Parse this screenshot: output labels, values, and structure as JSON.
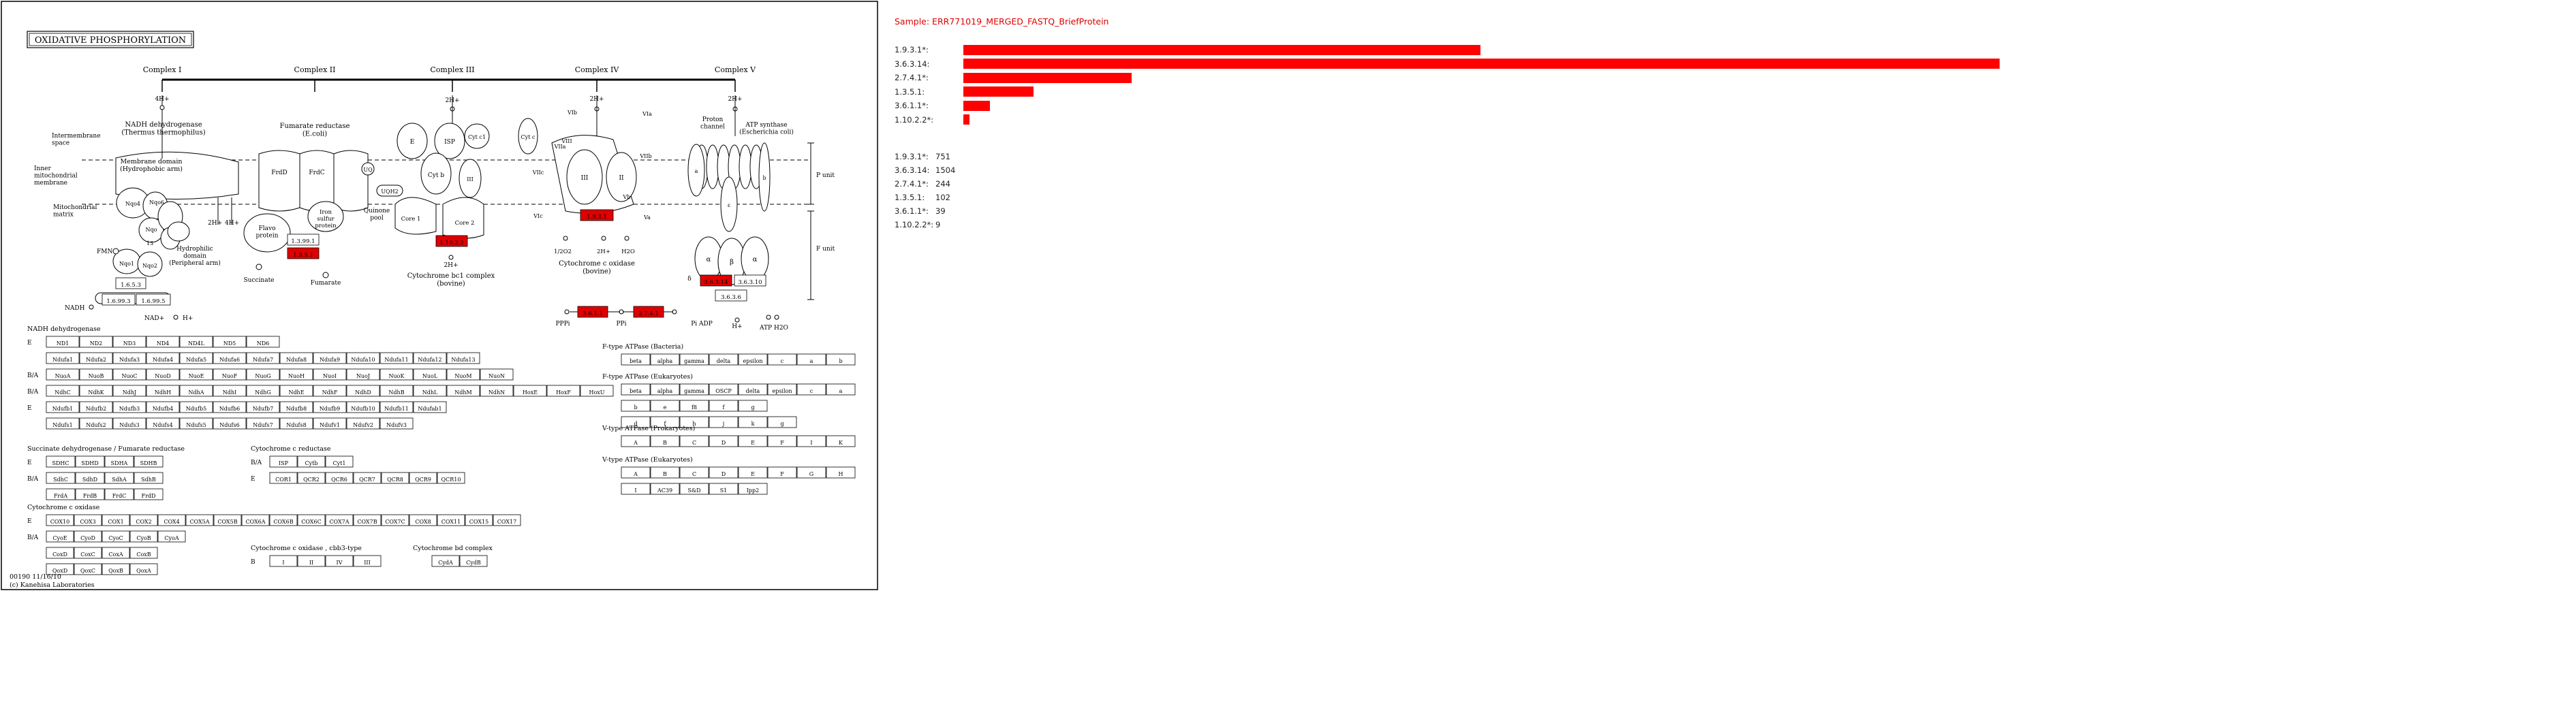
{
  "map": {
    "title": "OXIDATIVE PHOSPHORYLATION",
    "map_id": "00190 11/16/10",
    "copyright": "(c) Kanehisa Laboratories",
    "complex_labels": [
      "Complex I",
      "Complex II",
      "Complex III",
      "Complex IV",
      "Complex V"
    ],
    "side_labels": {
      "intermembrane": [
        "Intermembrane",
        "space"
      ],
      "inner": [
        "Inner",
        "mitochondrial",
        "membrane"
      ],
      "matrix": [
        "Mitochondrial",
        "matrix"
      ],
      "p_unit": "P unit",
      "f_unit": "F unit"
    },
    "diagram_text": {
      "nadh_dh": [
        "NADH dehydrogenase",
        "(Thermus thermophilus)"
      ],
      "membrane_domain": [
        "Membrane domain",
        "(Hydrophobic arm)"
      ],
      "hydrophilic": [
        "Hydrophilic",
        "domain",
        "(Peripheral arm)"
      ],
      "fumarate_reductase": [
        "Fumarate reductase",
        "(E.coli)"
      ],
      "flavo": [
        "Flavo",
        "protein"
      ],
      "iron": [
        "Iron",
        "sulfur",
        "protein"
      ],
      "quinone_pool": [
        "Quinone",
        "pool"
      ],
      "succinate": "Succinate",
      "fumarate": "Fumarate",
      "cytbc1": [
        "Cytochrome bc1 complex",
        "(bovine)"
      ],
      "cox": [
        "Cytochrome c oxidase",
        "(bovine)"
      ],
      "atp_synthase": [
        "ATP synthase",
        "(Escherichia coli)"
      ],
      "proton_channel": [
        "Proton",
        "channel"
      ],
      "fmn": "FMN",
      "nadh": "NADH",
      "nad_h": "NAD+",
      "h_plus": "H+",
      "four_h": "4H+",
      "two_h": "2H+",
      "uq": "UQ",
      "uqh2": "UQH2",
      "half_o2": "1/2O2",
      "h2o": "H2O",
      "ppi": "PPPi",
      "pi": "PPi",
      "pi_adp": "Pi ADP",
      "atp_h2o": "ATP H2O",
      "core1": "Core 1",
      "core2": "Core 2",
      "isp": "ISP",
      "cytc1": "Cyt c1",
      "cytb": "Cyt b",
      "cytc": "Cyt c",
      "sub_letters": [
        "E",
        "I",
        "II",
        "III",
        "IV",
        "Va",
        "Vb",
        "VIa",
        "VIb",
        "VIc",
        "VIIa",
        "VIIb",
        "VIIc",
        "VIII"
      ]
    },
    "ec_boxes": [
      {
        "id": "ec_1_6_5_3",
        "label": "1.6.5.3",
        "hit": false
      },
      {
        "id": "ec_1_6_99_3",
        "label": "1.6.99.3",
        "hit": false
      },
      {
        "id": "ec_1_6_99_5",
        "label": "1.6.99.5",
        "hit": false
      },
      {
        "id": "ec_1_3_99_1",
        "label": "1.3.99.1",
        "hit": false
      },
      {
        "id": "ec_1_3_5_1",
        "label": "1.3.5.1",
        "hit": true
      },
      {
        "id": "ec_1_10_2_2",
        "label": "1.10.2.2",
        "hit": true
      },
      {
        "id": "ec_1_9_3_1",
        "label": "1.9.3.1",
        "hit": true
      },
      {
        "id": "ec_3_6_3_14",
        "label": "3.6.3.14",
        "hit": true
      },
      {
        "id": "ec_3_6_3_10",
        "label": "3.6.3.10",
        "hit": false
      },
      {
        "id": "ec_3_6_3_6",
        "label": "3.6.3.6",
        "hit": false
      },
      {
        "id": "ec_3_6_1_1",
        "label": "3.6.1.1",
        "hit": true
      },
      {
        "id": "ec_2_7_4_1",
        "label": "2.7.4.1",
        "hit": true
      }
    ],
    "gene_tables": [
      {
        "title": "NADH dehydrogenase",
        "rows": [
          {
            "prefix": "E",
            "cells": [
              "ND1",
              "ND2",
              "ND3",
              "ND4",
              "ND4L",
              "ND5",
              "ND6"
            ]
          },
          {
            "prefix": "",
            "cells": [
              "Ndufa1",
              "Ndufa2",
              "Ndufa3",
              "Ndufa4",
              "Ndufa5",
              "Ndufa6",
              "Ndufa7",
              "Ndufa8",
              "Ndufa9",
              "Ndufa10",
              "Ndufa11",
              "Ndufa12",
              "Ndufa13"
            ]
          },
          {
            "prefix": "B/A",
            "cells": [
              "NuoA",
              "NuoB",
              "NuoC",
              "NuoD",
              "NuoE",
              "NuoF",
              "NuoG",
              "NuoH",
              "NuoI",
              "NuoJ",
              "NuoK",
              "NuoL",
              "NuoM",
              "NuoN"
            ]
          },
          {
            "prefix": "B/A",
            "cells": [
              "NdhC",
              "NdhK",
              "NdhJ",
              "NdhH",
              "NdhA",
              "NdhI",
              "NdhG",
              "NdhE",
              "NdhF",
              "NdhD",
              "NdhB",
              "NdhL",
              "NdhM",
              "NdhN",
              "HoxE",
              "HoxF",
              "HoxU"
            ]
          },
          {
            "prefix": "E",
            "cells": [
              "Ndufb1",
              "Ndufb2",
              "Ndufb3",
              "Ndufb4",
              "Ndufb5",
              "Ndufb6",
              "Ndufb7",
              "Ndufb8",
              "Ndufb9",
              "Ndufb10",
              "Ndufb11",
              "Ndufab1"
            ]
          },
          {
            "prefix": "",
            "cells": [
              "Ndufs1",
              "Ndufs2",
              "Ndufs3",
              "Ndufs4",
              "Ndufs5",
              "Ndufs6",
              "Ndufs7",
              "Ndufs8",
              "Ndufv1",
              "Ndufv2",
              "Ndufv3"
            ]
          }
        ]
      },
      {
        "title": "Succinate dehydrogenase / Fumarate reductase",
        "rows": [
          {
            "prefix": "E",
            "cells": [
              "SDHC",
              "SDHD",
              "SDHA",
              "SDHB"
            ]
          },
          {
            "prefix": "B/A",
            "cells": [
              "SdhC",
              "SdhD",
              "SdhA",
              "SdhB"
            ]
          },
          {
            "prefix": "",
            "cells": [
              "FrdA",
              "FrdB",
              "FrdC",
              "FrdD"
            ]
          }
        ]
      },
      {
        "title": "Cytochrome c reductase",
        "rows": [
          {
            "prefix": "B/A",
            "cells": [
              "ISP",
              "Cytb",
              "Cyt1"
            ]
          },
          {
            "prefix": "E",
            "cells": [
              "COR1",
              "QCR2",
              "QCR6",
              "QCR7",
              "QCR8",
              "QCR9",
              "QCR10"
            ]
          }
        ]
      },
      {
        "title": "Cytochrome c oxidase",
        "rows": [
          {
            "prefix": "E",
            "cells": [
              "COX10",
              "COX3",
              "COX1",
              "COX2",
              "COX4",
              "COX5A",
              "COX5B",
              "COX6A",
              "COX6B",
              "COX6C",
              "COX7A",
              "COX7B",
              "COX7C",
              "COX8",
              "COX11",
              "COX15",
              "COX17"
            ]
          },
          {
            "prefix": "B/A",
            "cells": [
              "CyoE",
              "CyoD",
              "CyoC",
              "CyoB",
              "CyoA"
            ]
          },
          {
            "prefix": "",
            "cells": [
              "CoxD",
              "CoxC",
              "CoxA",
              "CoxB"
            ]
          },
          {
            "prefix": "",
            "cells": [
              "QoxD",
              "QoxC",
              "QoxB",
              "QoxA"
            ]
          }
        ]
      },
      {
        "title": "Cytochrome c oxidase , cbb3-type",
        "rows": [
          {
            "prefix": "B",
            "cells": [
              "I",
              "II",
              "IV",
              "III"
            ]
          }
        ]
      },
      {
        "title": "Cytochrome bd complex",
        "rows": [
          {
            "prefix": "",
            "cells": [
              "CydA",
              "CydB"
            ]
          }
        ]
      },
      {
        "title": "F-type ATPase (Bacteria)",
        "rows": [
          {
            "prefix": "",
            "cells": [
              "beta",
              "alpha",
              "gamma",
              "delta",
              "epsilon",
              "c",
              "a",
              "b"
            ]
          }
        ]
      },
      {
        "title": "F-type ATPase (Eukaryotes)",
        "rows": [
          {
            "prefix": "",
            "cells": [
              "beta",
              "alpha",
              "gamma",
              "OSCP",
              "delta",
              "epsilon",
              "c",
              "a"
            ]
          },
          {
            "prefix": "",
            "cells": [
              "b",
              "e",
              "f8",
              "f",
              "g"
            ]
          },
          {
            "prefix": "",
            "cells": [
              "d",
              "f",
              "h",
              "j",
              "k",
              "g"
            ]
          }
        ]
      },
      {
        "title": "V-type ATPase (Prokaryotes)",
        "rows": [
          {
            "prefix": "",
            "cells": [
              "A",
              "B",
              "C",
              "D",
              "E",
              "F",
              "I",
              "K"
            ]
          }
        ]
      },
      {
        "title": "V-type ATPase (Eukaryotes)",
        "rows": [
          {
            "prefix": "",
            "cells": [
              "A",
              "B",
              "C",
              "D",
              "E",
              "F",
              "G",
              "H"
            ]
          },
          {
            "prefix": "",
            "cells": [
              "I",
              "AC39",
              "S&D",
              "S1",
              "Ipp2"
            ]
          }
        ]
      }
    ]
  },
  "sample": {
    "title": "Sample: ERR771019_MERGED_FASTQ_BriefProtein",
    "bar_color": "#ff0000"
  },
  "chart_data": {
    "type": "bar",
    "orientation": "horizontal",
    "categories": [
      "1.9.3.1*:",
      "3.6.3.14:",
      "2.7.4.1*:",
      "1.3.5.1:",
      "3.6.1.1*:",
      "1.10.2.2*:"
    ],
    "values": [
      751,
      1504,
      244,
      102,
      39,
      9
    ],
    "title": "",
    "xlabel": "",
    "ylabel": "",
    "count_list": [
      {
        "key": "1.9.3.1*:",
        "value": "751"
      },
      {
        "key": "3.6.3.14:",
        "value": "1504"
      },
      {
        "key": "2.7.4.1*:",
        "value": "244"
      },
      {
        "key": "1.3.5.1:",
        "value": "102"
      },
      {
        "key": "3.6.1.1*:",
        "value": "39"
      },
      {
        "key": "1.10.2.2*:",
        "value": "9"
      }
    ]
  }
}
